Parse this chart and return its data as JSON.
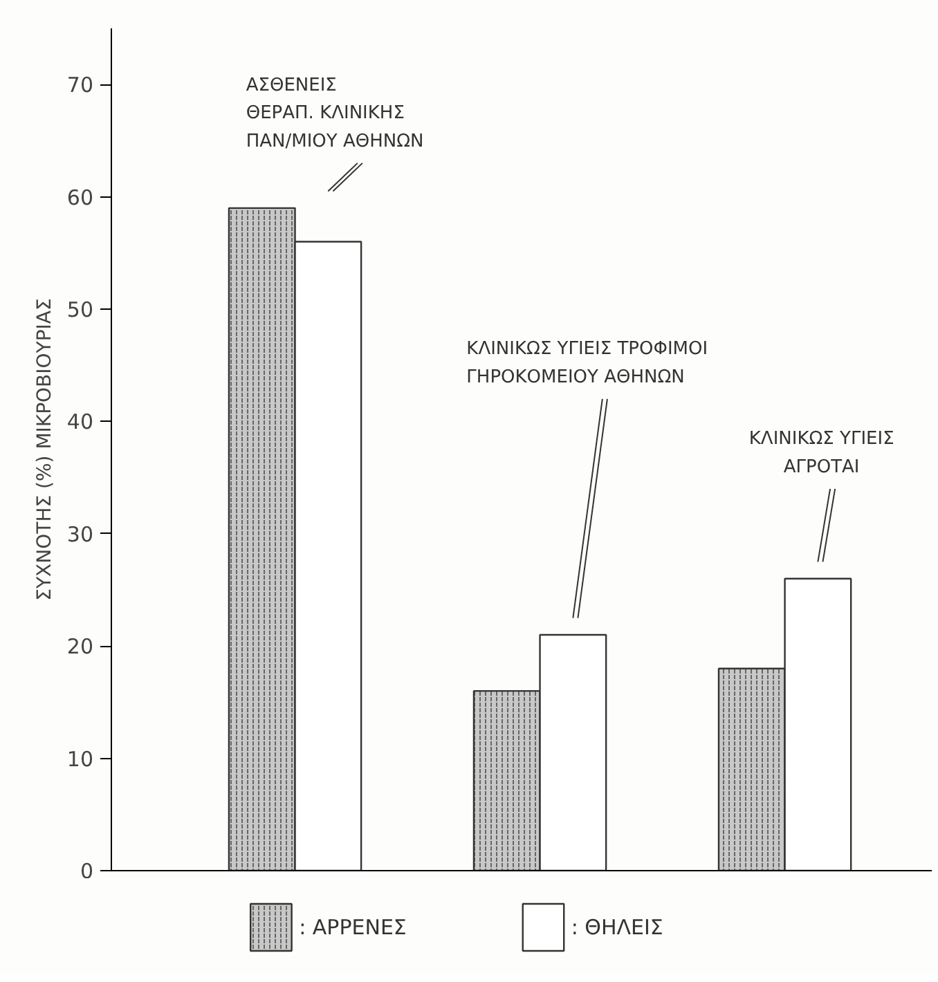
{
  "chart_data": {
    "type": "bar",
    "categories": [
      null,
      null,
      null
    ],
    "series": [
      {
        "name": ": ΑΡΡΕΝΕΣ",
        "color": "#c8c8c8",
        "values": [
          59,
          16,
          18
        ]
      },
      {
        "name": ": ΘΗΛΕΙΣ",
        "color": "#ffffff",
        "values": [
          56,
          21,
          26
        ]
      }
    ],
    "ylabel": "ΣΥΧΝΟΤΗΣ (%) ΜΙΚΡΟΒΙΟΥΡΙΑΣ",
    "ylim": [
      0,
      75
    ],
    "yticks": [
      0,
      10,
      20,
      30,
      40,
      50,
      60,
      70
    ],
    "annotations": [
      "ΑΣΘΕΝΕΙΣ\nΘΕΡΑΠ. ΚΛΙΝΙΚΗΣ\nΠΑΝ/ΜΙΟΥ ΑΘΗΝΩΝ",
      "ΚΛΙΝΙΚΩΣ ΥΓΙΕΙΣ ΤΡΟΦΙΜΟΙ\nΓΗΡΟΚΟΜΕΙΟΥ ΑΘΗΝΩΝ",
      "ΚΛΙΝΙΚΩΣ ΥΓΙΕΙΣ\nΑΓΡΟΤΑΙ"
    ],
    "grid": false,
    "legend": "bottom"
  }
}
